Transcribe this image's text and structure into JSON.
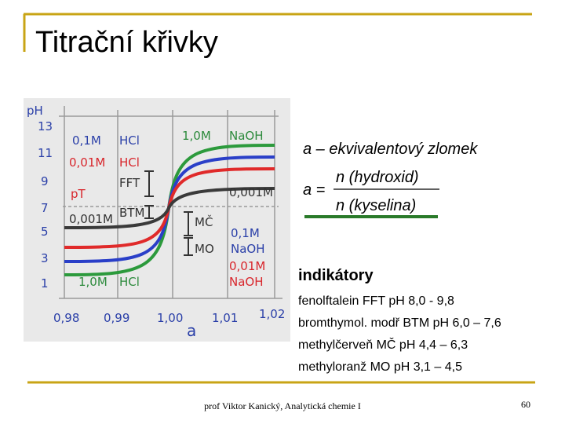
{
  "title": "Titrační křivky",
  "figure": {
    "y_axis_label": "pH",
    "y_labels": [
      "13",
      "11",
      "9",
      "7",
      "5",
      "3",
      "1"
    ],
    "x_labels": [
      "0,98",
      "0,99",
      "1,00",
      "1,01",
      "1,02"
    ],
    "x_axis_label": "a",
    "annotations": {
      "hcl_01": "0,1M",
      "hcl_01_name": "HCl",
      "hcl_001": "0,01M",
      "hcl_001_name": "HCl",
      "pt": "pT",
      "fft": "FFT",
      "hcl_0001": "0,001M",
      "btm": "BTM",
      "mc": "MČ",
      "mo": "MO",
      "naoh_1": "1,0M",
      "naoh_1_name": "NaOH",
      "naoh_0001": "0,001M",
      "naoh_01": "0,1M",
      "naoh_01_name": "NaOH",
      "naoh_001": "0,01M",
      "naoh_001_name": "NaOH",
      "hcl_1": "1,0M",
      "hcl_1_name": "HCl"
    }
  },
  "formula": {
    "definition": "a – ekvivalentový zlomek",
    "lhs": "a =",
    "numerator": "n (hydroxid)",
    "denominator": "n (kyselina)"
  },
  "indicators": {
    "heading": "indikátory",
    "items": [
      "fenolftalein FFT pH 8,0 - 9,8",
      "bromthymol. modř BTM pH 6,0 – 7,6",
      "methylčerveň MČ pH 4,4 – 6,3",
      "methyloranž MO pH 3,1 – 4,5"
    ]
  },
  "footer": "prof Viktor Kanický, Analytická chemie I",
  "page_number": "60"
}
